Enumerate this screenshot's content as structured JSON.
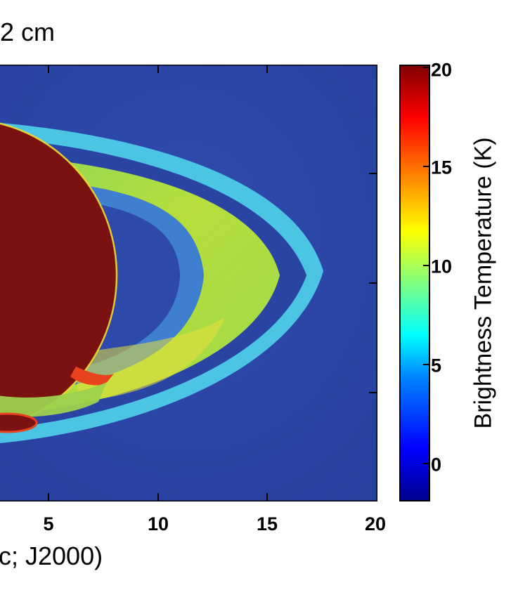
{
  "chart_data": {
    "type": "heatmap",
    "title": "2 cm",
    "xlabel": "c; J2000)",
    "x_ticks": [
      "5",
      "10",
      "15",
      "20"
    ],
    "xlim": [
      0,
      20
    ],
    "colorbar": {
      "label": "Brightness Temperature (K)",
      "ticks": [
        "0",
        "5",
        "10",
        "15",
        "20"
      ],
      "range": [
        -2,
        20
      ],
      "colormap": "jet"
    },
    "colors": {
      "background": "#2a44a0",
      "planet": "#7b1212",
      "ring_a": "#4cc6e6",
      "ring_b": "#b0dc3a",
      "ring_c": "#48b0e8"
    }
  }
}
